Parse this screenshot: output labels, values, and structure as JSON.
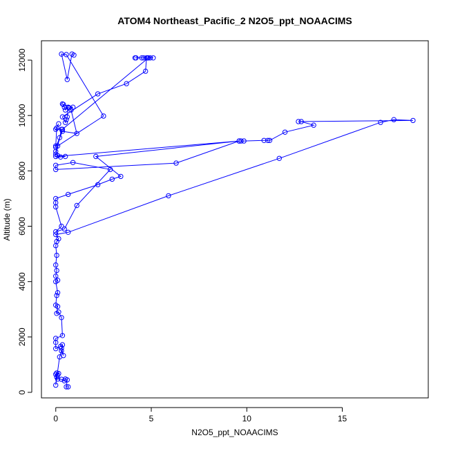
{
  "chart_data": {
    "type": "line",
    "title": "ATOM4 Northeast_Pacific_2 N2O5_ppt_NOAACIMS",
    "xlabel": "N2O5_ppt_NOAACIMS",
    "ylabel": "Altitude (m)",
    "xlim": [
      -0.75,
      19.5
    ],
    "ylim": [
      -200,
      12700
    ],
    "xticks": [
      0,
      5,
      10,
      15
    ],
    "yticks": [
      0,
      2000,
      4000,
      6000,
      8000,
      10000,
      12000
    ],
    "series_color": "#0000ff",
    "markers": "open-circle",
    "series": [
      {
        "points": [
          [
            0.65,
            200
          ],
          [
            0.55,
            200
          ],
          [
            0.6,
            450
          ],
          [
            0.5,
            480
          ],
          [
            0.45,
            420
          ],
          [
            0.3,
            470
          ],
          [
            0.1,
            480
          ],
          [
            0.05,
            550
          ],
          [
            0.0,
            650
          ],
          [
            0.15,
            680
          ],
          [
            0.1,
            620
          ],
          [
            0.05,
            700
          ],
          [
            0.0,
            260
          ],
          [
            0.2,
            1280
          ],
          [
            0.3,
            1500
          ],
          [
            0.4,
            1330
          ],
          [
            0.3,
            1600
          ],
          [
            0.35,
            1720
          ],
          [
            0.25,
            1660
          ],
          [
            0.0,
            1580
          ],
          [
            0.0,
            1800
          ],
          [
            0.0,
            1950
          ],
          [
            0.35,
            2050
          ],
          [
            0.3,
            2700
          ],
          [
            0.15,
            2900
          ],
          [
            0.05,
            2850
          ],
          [
            0.1,
            3100
          ],
          [
            0.0,
            3150
          ],
          [
            0.05,
            3500
          ],
          [
            0.1,
            3600
          ],
          [
            0.0,
            4000
          ],
          [
            0.1,
            4050
          ],
          [
            0.0,
            4200
          ],
          [
            0.05,
            4400
          ],
          [
            0.0,
            4600
          ],
          [
            0.05,
            4950
          ],
          [
            0.0,
            5300
          ],
          [
            0.05,
            5450
          ],
          [
            0.15,
            5550
          ],
          [
            0.0,
            5700
          ],
          [
            0.65,
            5780
          ],
          [
            5.9,
            7100
          ],
          [
            11.7,
            8450
          ],
          [
            17.0,
            9750
          ],
          [
            17.7,
            9850
          ],
          [
            18.7,
            9820
          ],
          [
            12.7,
            9780
          ],
          [
            12.85,
            9780
          ],
          [
            13.5,
            9650
          ],
          [
            12.0,
            9400
          ],
          [
            11.2,
            9100
          ],
          [
            11.1,
            9100
          ],
          [
            10.9,
            9100
          ],
          [
            9.85,
            9080
          ],
          [
            9.7,
            9080
          ],
          [
            9.6,
            9080
          ],
          [
            2.1,
            8520
          ],
          [
            3.4,
            7800
          ],
          [
            2.95,
            7700
          ],
          [
            2.2,
            7500
          ],
          [
            0.65,
            7150
          ],
          [
            0.0,
            7000
          ],
          [
            0.0,
            6850
          ],
          [
            0.0,
            6700
          ],
          [
            0.3,
            6000
          ],
          [
            0.0,
            5800
          ],
          [
            0.45,
            5900
          ],
          [
            1.1,
            6750
          ],
          [
            2.85,
            8050
          ],
          [
            0.9,
            8300
          ],
          [
            0.0,
            8200
          ],
          [
            0.0,
            8050
          ],
          [
            6.3,
            8280
          ],
          [
            9.6,
            9080
          ],
          [
            0.0,
            8520
          ],
          [
            0.25,
            8500
          ],
          [
            0.5,
            8520
          ],
          [
            0.1,
            8550
          ],
          [
            0.0,
            8600
          ],
          [
            0.2,
            9200
          ],
          [
            0.3,
            9500
          ],
          [
            0.0,
            9500
          ],
          [
            0.15,
            9700
          ],
          [
            0.05,
            9550
          ],
          [
            0.0,
            8900
          ],
          [
            0.0,
            8850
          ],
          [
            0.35,
            9430
          ],
          [
            1.1,
            9350
          ],
          [
            0.8,
            10200
          ],
          [
            0.7,
            10280
          ],
          [
            0.9,
            10300
          ],
          [
            0.4,
            10400
          ],
          [
            0.35,
            10420
          ],
          [
            0.45,
            10300
          ],
          [
            0.5,
            10200
          ],
          [
            0.65,
            10300
          ],
          [
            0.6,
            9950
          ],
          [
            0.55,
            9850
          ],
          [
            0.5,
            9750
          ],
          [
            0.35,
            9950
          ],
          [
            2.2,
            10780
          ],
          [
            3.7,
            11150
          ],
          [
            4.7,
            11600
          ],
          [
            4.75,
            12080
          ],
          [
            4.8,
            12080
          ],
          [
            4.95,
            12080
          ],
          [
            4.6,
            12080
          ],
          [
            4.2,
            12080
          ],
          [
            4.15,
            12080
          ],
          [
            4.5,
            12080
          ],
          [
            5.1,
            12080
          ],
          [
            4.85,
            12080
          ],
          [
            0.35,
            9500
          ],
          [
            0.0,
            8700
          ],
          [
            0.1,
            8900
          ],
          [
            2.5,
            9980
          ],
          [
            0.55,
            12200
          ],
          [
            0.3,
            12220
          ],
          [
            0.6,
            11300
          ],
          [
            0.85,
            12220
          ],
          [
            0.95,
            12180
          ]
        ]
      }
    ]
  }
}
